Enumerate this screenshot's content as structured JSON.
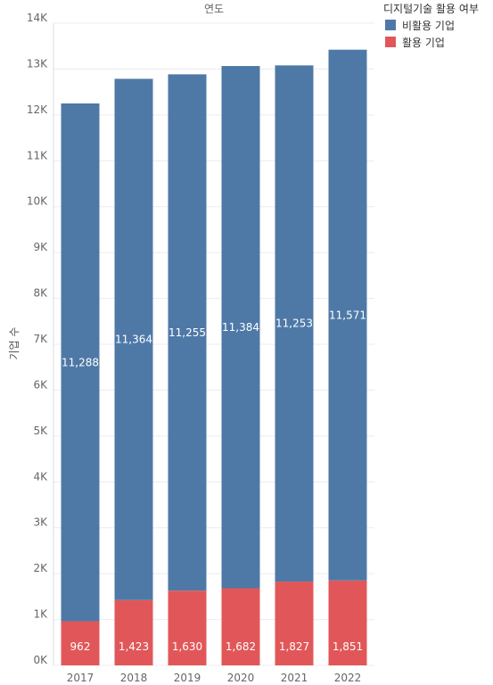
{
  "chart_data": {
    "type": "bar",
    "stacked": true,
    "title": "연도",
    "ylabel": "기업 수",
    "categories": [
      "2017",
      "2018",
      "2019",
      "2020",
      "2021",
      "2022"
    ],
    "series": [
      {
        "name": "활용 기업",
        "color": "#E15759",
        "values": [
          962,
          1423,
          1630,
          1682,
          1827,
          1851
        ],
        "labels": [
          "962",
          "1,423",
          "1,630",
          "1,682",
          "1,827",
          "1,851"
        ]
      },
      {
        "name": "비활용 기업",
        "color": "#4E79A7",
        "values": [
          11288,
          11364,
          11255,
          11384,
          11253,
          11571
        ],
        "labels": [
          "11,288",
          "11,364",
          "11,255",
          "11,384",
          "11,253",
          "11,571"
        ]
      }
    ],
    "ylim": [
      0,
      14000
    ],
    "yticks": [
      0,
      1000,
      2000,
      3000,
      4000,
      5000,
      6000,
      7000,
      8000,
      9000,
      10000,
      11000,
      12000,
      13000,
      14000
    ],
    "ytick_labels": [
      "0K",
      "1K",
      "2K",
      "3K",
      "4K",
      "5K",
      "6K",
      "7K",
      "8K",
      "9K",
      "10K",
      "11K",
      "12K",
      "13K",
      "14K"
    ],
    "grid": true,
    "legend": {
      "title": "디지털기술 활용 여부",
      "position": "top-right",
      "entries": [
        {
          "label": "비활용 기업",
          "color": "#4E79A7"
        },
        {
          "label": "활용 기업",
          "color": "#E15759"
        }
      ]
    }
  }
}
